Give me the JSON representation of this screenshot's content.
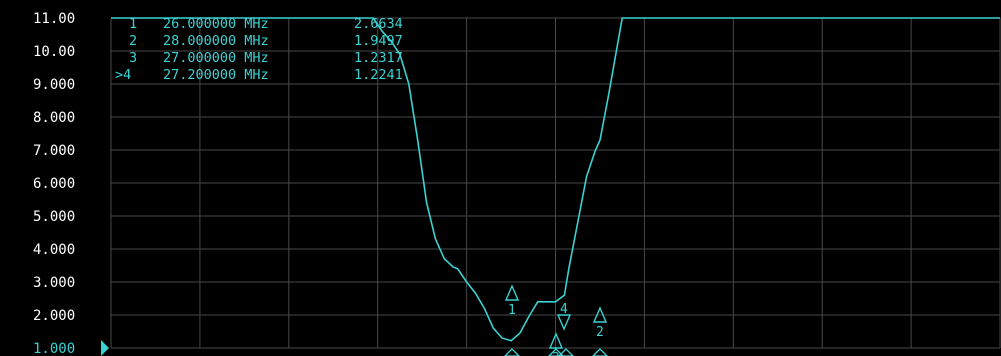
{
  "chart_data": {
    "type": "line",
    "title": "",
    "xlabel": "",
    "ylabel": "",
    "ylim": [
      1.0,
      11.0
    ],
    "xlim": [
      24.0,
      34.0
    ],
    "grid": true,
    "y_tick_labels": [
      "11.00",
      "10.00",
      "9.000",
      "8.000",
      "7.000",
      "6.000",
      "5.000",
      "4.000",
      "3.000",
      "2.000",
      "1.000"
    ],
    "series": [
      {
        "x": [
          26.85,
          26.95,
          27.05,
          27.15,
          27.25,
          27.35,
          27.45,
          27.55,
          27.65,
          27.75,
          27.85,
          27.9,
          28.0,
          28.1,
          28.2,
          28.3,
          28.4,
          28.5,
          28.6,
          28.7,
          28.8,
          28.9,
          29.0,
          29.1,
          29.15,
          29.25,
          29.35,
          29.45,
          29.5,
          29.6
        ],
        "values": [
          11.0,
          11.0,
          10.6,
          10.3,
          9.9,
          9.0,
          7.3,
          5.4,
          4.3,
          3.7,
          3.45,
          3.4,
          3.0,
          2.66,
          2.2,
          1.6,
          1.3,
          1.22,
          1.45,
          1.95,
          2.4,
          2.4,
          2.4,
          2.6,
          3.4,
          4.8,
          6.2,
          7.0,
          7.3,
          8.7
        ]
      }
    ],
    "trace_color": "#3ad2d2",
    "markers": [
      {
        "id": "1",
        "x": 26.0,
        "freq": "26.000000 MHz",
        "value": "2.6634"
      },
      {
        "id": "2",
        "x": 28.0,
        "freq": "28.000000 MHz",
        "value": "1.9497"
      },
      {
        "id": "3",
        "x": 27.0,
        "freq": "27.000000 MHz",
        "value": "1.2317"
      },
      {
        "id": "4",
        "x": 27.2,
        "freq": "27.200000 MHz",
        "value": "1.2241",
        "active": true
      }
    ],
    "active_marker_prefix": ">"
  },
  "colors": {
    "background": "#000000",
    "grid": "#484848",
    "text": "#3ad2d2",
    "axis_text": "#ffffff",
    "reference": "#3ad2d2"
  }
}
